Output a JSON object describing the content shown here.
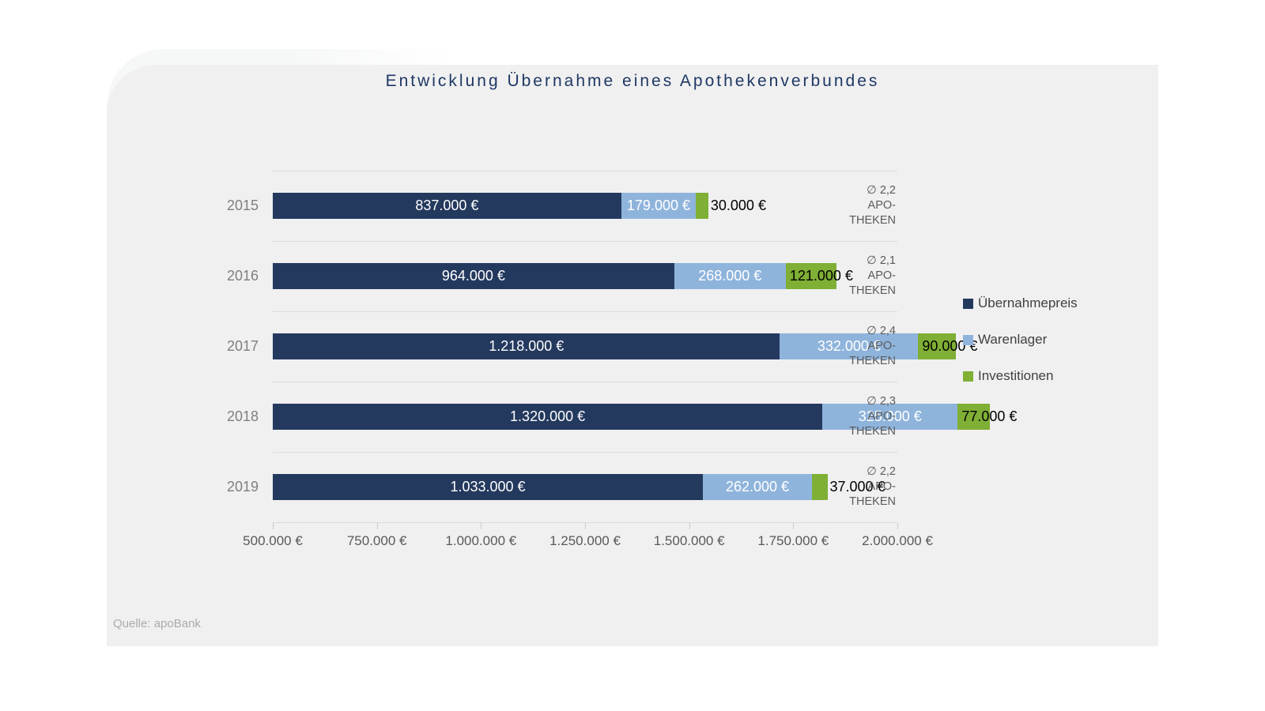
{
  "title": "Entwicklung Übernahme eines Apothekenverbundes",
  "source": "Quelle: apoBank",
  "colors": {
    "title_text": "#1f3864",
    "panel_background": "#f0f0f1",
    "gridline": "#dcdcdc",
    "axis_text": "#595959",
    "category_text": "#7f7f7f",
    "annotation_text": "#5a5a5a",
    "legend_text": "#404040",
    "source_text": "#ababab",
    "series_uebernahmepreis": "#24395e",
    "series_warenlager": "#8fb4dc",
    "series_investitionen": "#7faf34"
  },
  "chart_data": {
    "type": "bar",
    "orientation": "horizontal",
    "stacked": true,
    "title": "Entwicklung Übernahme eines Apothekenverbundes",
    "categories": [
      "2015",
      "2016",
      "2017",
      "2018",
      "2019"
    ],
    "series": [
      {
        "name": "Übernahmepreis",
        "color": "#24395e",
        "label_color": "#ffffff",
        "values": [
          837000,
          964000,
          1218000,
          1320000,
          1033000
        ],
        "labels": [
          "837.000 €",
          "964.000 €",
          "1.218.000 €",
          "1.320.000 €",
          "1.033.000 €"
        ]
      },
      {
        "name": "Warenlager",
        "color": "#8fb4dc",
        "label_color": "#ffffff",
        "values": [
          179000,
          268000,
          332000,
          325000,
          262000
        ],
        "labels": [
          "179.000 €",
          "268.000 €",
          "332.000 €",
          "325.000 €",
          "262.000 €"
        ]
      },
      {
        "name": "Investitionen",
        "color": "#7faf34",
        "label_color": "#000000",
        "values": [
          30000,
          121000,
          90000,
          77000,
          37000
        ],
        "labels": [
          "30.000 €",
          "121.000 €",
          "90.000 €",
          "77.000 €",
          "37.000 €"
        ]
      }
    ],
    "row_annotations": [
      [
        "∅ 2,2",
        "APO-",
        "THEKEN"
      ],
      [
        "∅ 2,1",
        "APO-",
        "THEKEN"
      ],
      [
        "∅ 2,4",
        "APO-",
        "THEKEN"
      ],
      [
        "∅ 2,3",
        "APO-",
        "THEKEN"
      ],
      [
        "∅ 2,2",
        "APO-",
        "THEKEN"
      ]
    ],
    "xlim": [
      500000,
      2000000
    ],
    "x_ticks": [
      {
        "value": 500000,
        "label": "500.000 €"
      },
      {
        "value": 750000,
        "label": "750.000 €"
      },
      {
        "value": 1000000,
        "label": "1.000.000 €"
      },
      {
        "value": 1250000,
        "label": "1.250.000 €"
      },
      {
        "value": 1500000,
        "label": "1.500.000 €"
      },
      {
        "value": 1750000,
        "label": "1.750.000 €"
      },
      {
        "value": 2000000,
        "label": "2.000.000 €"
      }
    ],
    "legend_position": "right",
    "grid": "category-band-separators"
  }
}
